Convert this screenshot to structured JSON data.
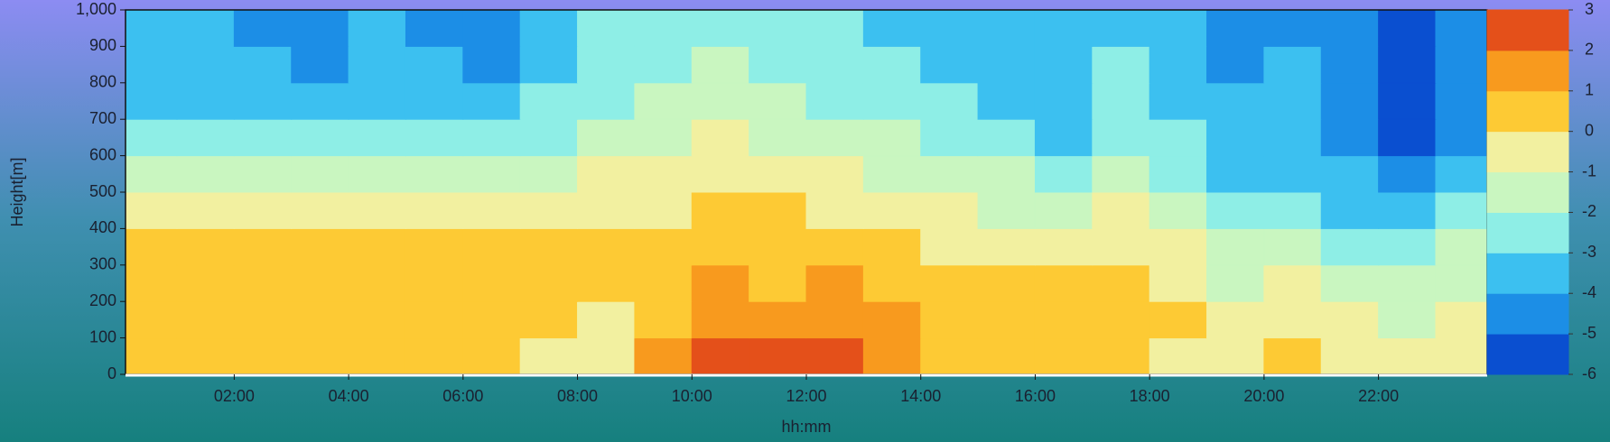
{
  "chart_data": {
    "type": "contour",
    "x_label": "hh:mm",
    "y_label": "Height[m]",
    "x": [
      0.5,
      1.5,
      2.5,
      3.5,
      4.5,
      5.5,
      6.5,
      7.5,
      8.5,
      9.5,
      10.5,
      11.5,
      12.5,
      13.5,
      14.5,
      15.5,
      16.5,
      17.5,
      18.5,
      19.5,
      20.5,
      21.5,
      22.5,
      23.5
    ],
    "y": [
      50,
      150,
      250,
      350,
      450,
      550,
      650,
      750,
      850,
      950
    ],
    "z": [
      [
        0.5,
        0.5,
        0.5,
        0.5,
        0.5,
        0.5,
        0.5,
        -0.5,
        -0.5,
        1.5,
        2.5,
        2.5,
        2.5,
        1.5,
        0.5,
        0.5,
        0.5,
        0.5,
        -0.5,
        -0.5,
        0.5,
        -0.5,
        -0.5,
        -0.5
      ],
      [
        0.5,
        0.5,
        0.5,
        0.5,
        0.5,
        0.5,
        0.5,
        0.5,
        -0.5,
        0.5,
        1.5,
        1.5,
        1.5,
        1.5,
        0.5,
        0.5,
        0.5,
        0.5,
        0.5,
        -0.5,
        -0.5,
        -0.5,
        -1.5,
        -0.5
      ],
      [
        0.8,
        0.8,
        0.5,
        0.5,
        0.5,
        0.5,
        0.5,
        0.5,
        0.5,
        0.5,
        1.5,
        0.5,
        1.5,
        0.5,
        0.5,
        0.5,
        0.5,
        0.5,
        -0.5,
        -1.5,
        -0.5,
        -1.5,
        -1.5,
        -1.5
      ],
      [
        0.5,
        0.5,
        0.5,
        0.3,
        0.3,
        0.3,
        0.5,
        0.5,
        0.5,
        0.5,
        0.5,
        0.5,
        0.5,
        0.5,
        -0.5,
        -0.5,
        -0.5,
        -0.5,
        -0.5,
        -1.5,
        -1.5,
        -2.5,
        -2.5,
        -1.5
      ],
      [
        -0.5,
        -0.5,
        -0.5,
        -0.5,
        -0.5,
        -0.5,
        -0.5,
        -0.5,
        -0.5,
        -0.5,
        0.5,
        0.5,
        -0.5,
        -0.5,
        -0.5,
        -1.5,
        -1.5,
        -0.5,
        -1.5,
        -2.5,
        -2.5,
        -3.5,
        -3.5,
        -2.5
      ],
      [
        -1.5,
        -1.5,
        -1.5,
        -1.5,
        -1.5,
        -1.5,
        -1.5,
        -1.5,
        -0.5,
        -0.5,
        -0.5,
        -0.5,
        -0.5,
        -1.5,
        -1.5,
        -1.5,
        -2.5,
        -1.5,
        -2.5,
        -3.5,
        -3.5,
        -3.5,
        -4.5,
        -3.5
      ],
      [
        -2.5,
        -2.5,
        -2.5,
        -2.5,
        -2.5,
        -2.5,
        -2.5,
        -2.5,
        -1.5,
        -1.5,
        -0.5,
        -1.5,
        -1.5,
        -1.5,
        -2.5,
        -2.5,
        -3.5,
        -2.5,
        -2.5,
        -3.5,
        -3.5,
        -4.5,
        -5.5,
        -4.5
      ],
      [
        -3.5,
        -3.5,
        -3.5,
        -3.5,
        -3.5,
        -3.5,
        -3.5,
        -2.5,
        -2.5,
        -1.5,
        -1.5,
        -1.5,
        -2.5,
        -2.5,
        -2.5,
        -3.5,
        -3.5,
        -2.5,
        -3.5,
        -3.5,
        -3.5,
        -4.5,
        -5.5,
        -4.5
      ],
      [
        -3.5,
        -3.5,
        -3.5,
        -4.5,
        -3.5,
        -3.5,
        -4.5,
        -3.5,
        -2.5,
        -2.5,
        -1.5,
        -2.5,
        -2.5,
        -2.5,
        -3.5,
        -3.5,
        -3.5,
        -2.5,
        -3.5,
        -4.5,
        -3.5,
        -4.5,
        -5.5,
        -4.5
      ],
      [
        -3.5,
        -3.5,
        -4.5,
        -4.5,
        -3.5,
        -4.5,
        -4.5,
        -3.5,
        -2.5,
        -2.5,
        -2.5,
        -2.5,
        -2.5,
        -3.5,
        -3.5,
        -3.5,
        -3.5,
        -3.5,
        -3.5,
        -4.5,
        -4.5,
        -4.5,
        -5.5,
        -4.5
      ]
    ],
    "levels": [
      -6,
      -5,
      -4,
      -3,
      -2,
      -1,
      0,
      1,
      2,
      3
    ],
    "colors": [
      "#0a4fd0",
      "#1c8ee6",
      "#3cc0f0",
      "#8eeee6",
      "#c9f6c0",
      "#f2f0a0",
      "#fdca34",
      "#f89a1e",
      "#e4501a"
    ],
    "xlim": [
      0.1,
      23.9
    ],
    "xticks": [
      {
        "value": 2,
        "label": "02:00"
      },
      {
        "value": 4,
        "label": "04:00"
      },
      {
        "value": 6,
        "label": "06:00"
      },
      {
        "value": 8,
        "label": "08:00"
      },
      {
        "value": 10,
        "label": "10:00"
      },
      {
        "value": 12,
        "label": "12:00"
      },
      {
        "value": 14,
        "label": "14:00"
      },
      {
        "value": 16,
        "label": "16:00"
      },
      {
        "value": 18,
        "label": "18:00"
      },
      {
        "value": 20,
        "label": "20:00"
      },
      {
        "value": 22,
        "label": "22:00"
      }
    ],
    "ylim": [
      0,
      1000
    ],
    "yticks": [
      0,
      100,
      200,
      300,
      400,
      500,
      600,
      700,
      800,
      900,
      {
        "value": 1000,
        "label": "1,000"
      }
    ]
  }
}
